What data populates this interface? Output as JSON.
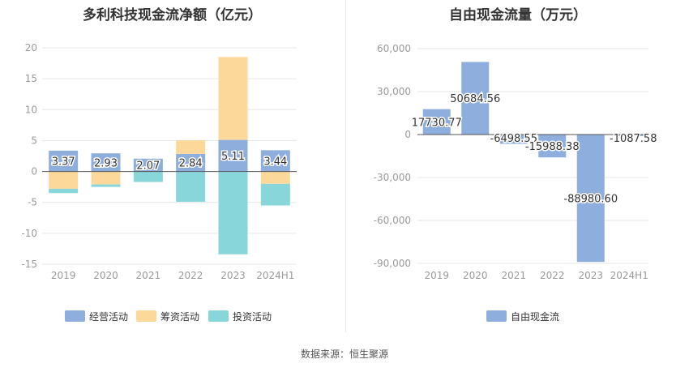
{
  "source": "数据来源：恒生聚源",
  "chart_data": [
    {
      "type": "bar",
      "stacked": true,
      "title": "多利科技现金流净额（亿元）",
      "categories": [
        "2019",
        "2020",
        "2021",
        "2022",
        "2023",
        "2024H1"
      ],
      "ylim": [
        -15,
        20
      ],
      "yticks": [
        20,
        15,
        10,
        5,
        0,
        -5,
        -10,
        -15
      ],
      "grid": true,
      "legend": "bottom",
      "series": [
        {
          "name": "经营活动",
          "color": "#8eaedd",
          "values": [
            3.37,
            2.93,
            2.07,
            2.84,
            5.11,
            3.44
          ]
        },
        {
          "name": "筹资活动",
          "color": "#fdd89b",
          "values": [
            -2.8,
            -2.1,
            0,
            2.2,
            13.4,
            -2.0
          ]
        },
        {
          "name": "投资活动",
          "color": "#88d6d9",
          "values": [
            -0.7,
            -0.4,
            -1.7,
            -4.9,
            -13.4,
            -3.5
          ]
        }
      ],
      "labels": [
        "3.37",
        "2.93",
        "2.07",
        "2.84",
        "5.11",
        "3.44"
      ]
    },
    {
      "type": "bar",
      "title": "自由现金流量（万元）",
      "categories": [
        "2019",
        "2020",
        "2021",
        "2022",
        "2023",
        "2024H1"
      ],
      "ylim": [
        -90000,
        60000
      ],
      "yticks": [
        60000,
        30000,
        0,
        -30000,
        -60000,
        -90000
      ],
      "ytick_labels": [
        "60,000",
        "30,000",
        "0",
        "-30,000",
        "-60,000",
        "-90,000"
      ],
      "grid": true,
      "legend": "bottom",
      "series": [
        {
          "name": "自由现金流",
          "color": "#8eaedd",
          "values": [
            17730.77,
            50684.56,
            -6498.55,
            -15988.38,
            -88980.6,
            -1087.58
          ]
        }
      ],
      "labels": [
        "17730.77",
        "50684.56",
        "-6498.55",
        "-15988.38",
        "-88980.60",
        "-1087.58"
      ]
    }
  ]
}
